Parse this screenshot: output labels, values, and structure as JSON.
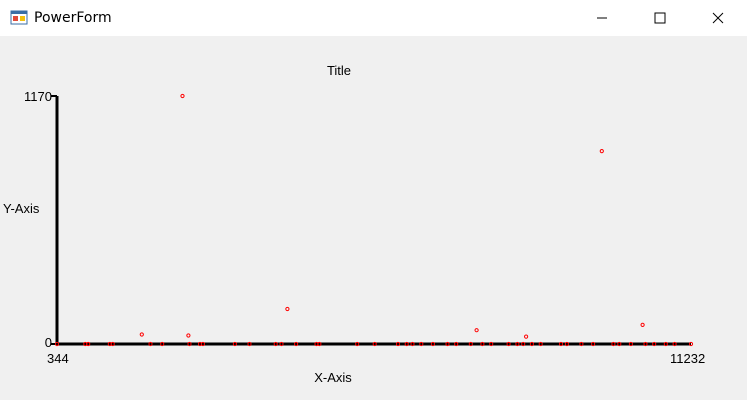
{
  "window": {
    "title": "PowerForm",
    "icon": "app-form-icon",
    "controls": [
      "minimize-icon",
      "maximize-icon",
      "close-icon"
    ]
  },
  "chart_data": {
    "type": "scatter",
    "title": "Title",
    "xlabel": "X-Axis",
    "ylabel": "Y-Axis",
    "xlim": [
      344,
      11232
    ],
    "ylim": [
      0,
      1170
    ],
    "x_ticks": [
      "344",
      "11232"
    ],
    "y_ticks": [
      "0",
      "1170"
    ],
    "grid": false,
    "legend": "none",
    "marker_color": "#ff0000",
    "series": [
      {
        "points": [
          {
            "x": 344,
            "y": 0
          },
          {
            "x": 830,
            "y": 0
          },
          {
            "x": 880,
            "y": 0
          },
          {
            "x": 1250,
            "y": 0
          },
          {
            "x": 1300,
            "y": 0
          },
          {
            "x": 1800,
            "y": 45
          },
          {
            "x": 1950,
            "y": 0
          },
          {
            "x": 2150,
            "y": 0
          },
          {
            "x": 2500,
            "y": 1170
          },
          {
            "x": 2600,
            "y": 40
          },
          {
            "x": 2620,
            "y": 0
          },
          {
            "x": 2800,
            "y": 0
          },
          {
            "x": 2850,
            "y": 0
          },
          {
            "x": 3400,
            "y": 0
          },
          {
            "x": 3650,
            "y": 0
          },
          {
            "x": 4100,
            "y": 0
          },
          {
            "x": 4200,
            "y": 0
          },
          {
            "x": 4300,
            "y": 165
          },
          {
            "x": 4450,
            "y": 0
          },
          {
            "x": 4800,
            "y": 0
          },
          {
            "x": 4850,
            "y": 0
          },
          {
            "x": 5500,
            "y": 0
          },
          {
            "x": 5800,
            "y": 0
          },
          {
            "x": 6200,
            "y": 0
          },
          {
            "x": 6350,
            "y": 0
          },
          {
            "x": 6450,
            "y": 0
          },
          {
            "x": 6600,
            "y": 0
          },
          {
            "x": 6800,
            "y": 0
          },
          {
            "x": 7050,
            "y": 0
          },
          {
            "x": 7200,
            "y": 0
          },
          {
            "x": 7450,
            "y": 0
          },
          {
            "x": 7550,
            "y": 65
          },
          {
            "x": 7650,
            "y": 0
          },
          {
            "x": 7800,
            "y": 0
          },
          {
            "x": 8100,
            "y": 0
          },
          {
            "x": 8250,
            "y": 0
          },
          {
            "x": 8350,
            "y": 0
          },
          {
            "x": 8400,
            "y": 35
          },
          {
            "x": 8500,
            "y": 0
          },
          {
            "x": 8650,
            "y": 0
          },
          {
            "x": 9000,
            "y": 0
          },
          {
            "x": 9100,
            "y": 0
          },
          {
            "x": 9350,
            "y": 0
          },
          {
            "x": 9550,
            "y": 0
          },
          {
            "x": 9700,
            "y": 910
          },
          {
            "x": 9900,
            "y": 0
          },
          {
            "x": 10000,
            "y": 0
          },
          {
            "x": 10200,
            "y": 0
          },
          {
            "x": 10400,
            "y": 90
          },
          {
            "x": 10450,
            "y": 0
          },
          {
            "x": 10600,
            "y": 0
          },
          {
            "x": 10800,
            "y": 0
          },
          {
            "x": 10950,
            "y": 0
          },
          {
            "x": 11232,
            "y": 0
          }
        ]
      }
    ]
  }
}
